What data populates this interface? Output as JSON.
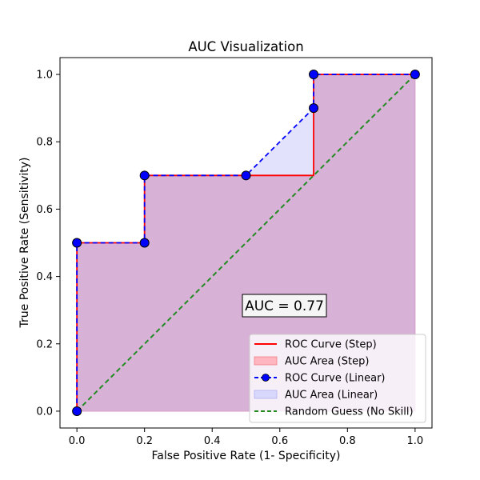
{
  "chart_data": {
    "type": "line",
    "title": "AUC Visualization",
    "xlabel": "False Positive Rate (1- Specificity)",
    "ylabel": "True Positive Rate (Sensitivity)",
    "xlim": [
      -0.05,
      1.05
    ],
    "ylim": [
      -0.05,
      1.05
    ],
    "xticks": [
      "0.0",
      "0.2",
      "0.4",
      "0.6",
      "0.8",
      "1.0"
    ],
    "yticks": [
      "0.0",
      "0.2",
      "0.4",
      "0.6",
      "0.8",
      "1.0"
    ],
    "grid": false,
    "legend_position": "bottom-right",
    "annotation": "AUC = 0.77",
    "roc_points": {
      "x": [
        0.0,
        0.0,
        0.2,
        0.2,
        0.5,
        0.7,
        0.7,
        1.0
      ],
      "y": [
        0.0,
        0.5,
        0.5,
        0.7,
        0.7,
        0.9,
        1.0,
        1.0
      ]
    },
    "series": [
      {
        "name": "ROC Curve (Step)",
        "kind": "step-line",
        "color": "#ff0000"
      },
      {
        "name": "AUC Area (Step)",
        "kind": "step-area",
        "color": "#ffb6c1"
      },
      {
        "name": "ROC Curve (Linear)",
        "kind": "dashed-line-markers",
        "color": "#0000ff",
        "marker_color": "#0000ff"
      },
      {
        "name": "AUC Area (Linear)",
        "kind": "linear-area",
        "color": "#d8d8fc"
      },
      {
        "name": "Random Guess (No Skill)",
        "kind": "diagonal",
        "color": "#228b22",
        "x": [
          0,
          1
        ],
        "y": [
          0,
          1
        ]
      }
    ]
  }
}
